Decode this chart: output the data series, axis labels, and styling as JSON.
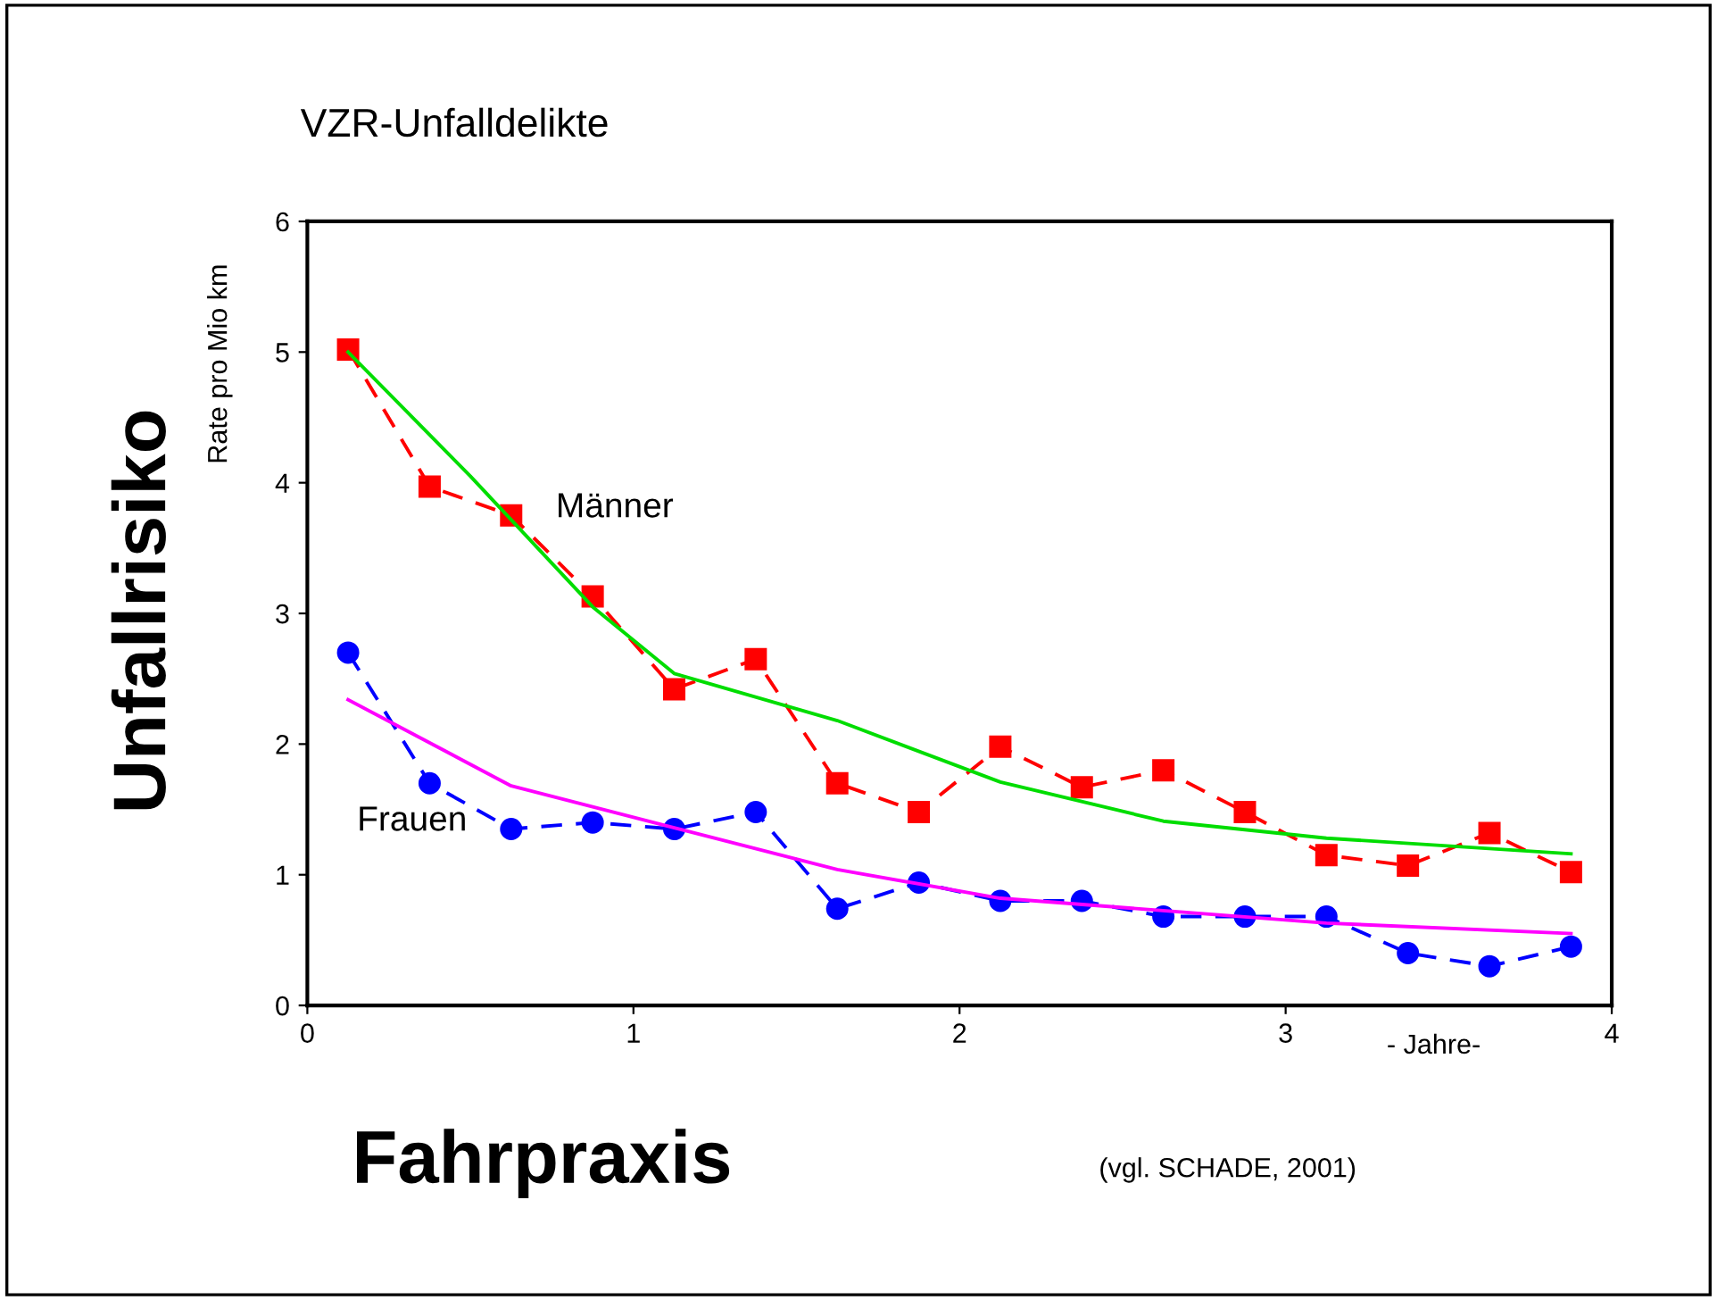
{
  "chart_data": {
    "type": "line",
    "title": "VZR-Unfalldelikte",
    "xlabel": "Fahrpraxis",
    "ylabel": "Unfallrisiko",
    "annotations": [
      "Rate pro Mio km",
      "- Jahre-",
      "(vgl. SCHADE, 2001)",
      "Männer",
      "Frauen"
    ],
    "x": [
      0.125,
      0.375,
      0.625,
      0.875,
      1.125,
      1.375,
      1.625,
      1.875,
      2.125,
      2.375,
      2.625,
      2.875,
      3.125,
      3.375,
      3.625,
      3.875
    ],
    "series": [
      {
        "color": "#ff0000",
        "marker": "square",
        "line_style": "dashed",
        "values": [
          5.02,
          3.97,
          3.75,
          3.13,
          2.42,
          2.65,
          1.7,
          1.48,
          1.98,
          1.67,
          1.8,
          1.48,
          1.15,
          1.07,
          1.32,
          1.02
        ]
      },
      {
        "color": "#0000ff",
        "marker": "circle",
        "line_style": "dashed",
        "values": [
          2.7,
          1.7,
          1.35,
          1.4,
          1.35,
          1.48,
          0.74,
          0.94,
          0.8,
          0.8,
          0.68,
          0.68,
          0.68,
          0.4,
          0.3,
          0.45
        ]
      },
      {
        "color": "#00dd00",
        "marker": "none",
        "line_style": "solid",
        "x": [
          0.125,
          0.5,
          0.875,
          1.125,
          1.625,
          2.125,
          2.625,
          3.125,
          3.875
        ],
        "values": [
          5.0,
          4.05,
          3.05,
          2.54,
          2.18,
          1.71,
          1.41,
          1.28,
          1.16
        ]
      },
      {
        "color": "#ff00ff",
        "marker": "none",
        "line_style": "solid",
        "x": [
          0.125,
          0.625,
          1.125,
          1.625,
          2.125,
          3.125,
          3.875
        ],
        "values": [
          2.34,
          1.68,
          1.36,
          1.04,
          0.82,
          0.63,
          0.55
        ]
      }
    ],
    "xlim": [
      0,
      4
    ],
    "xticks": [
      0,
      1,
      2,
      3,
      4
    ],
    "ylim": [
      0,
      6
    ],
    "yticks": [
      0,
      1,
      2,
      3,
      4,
      5,
      6
    ],
    "grid": false,
    "legend": false
  }
}
